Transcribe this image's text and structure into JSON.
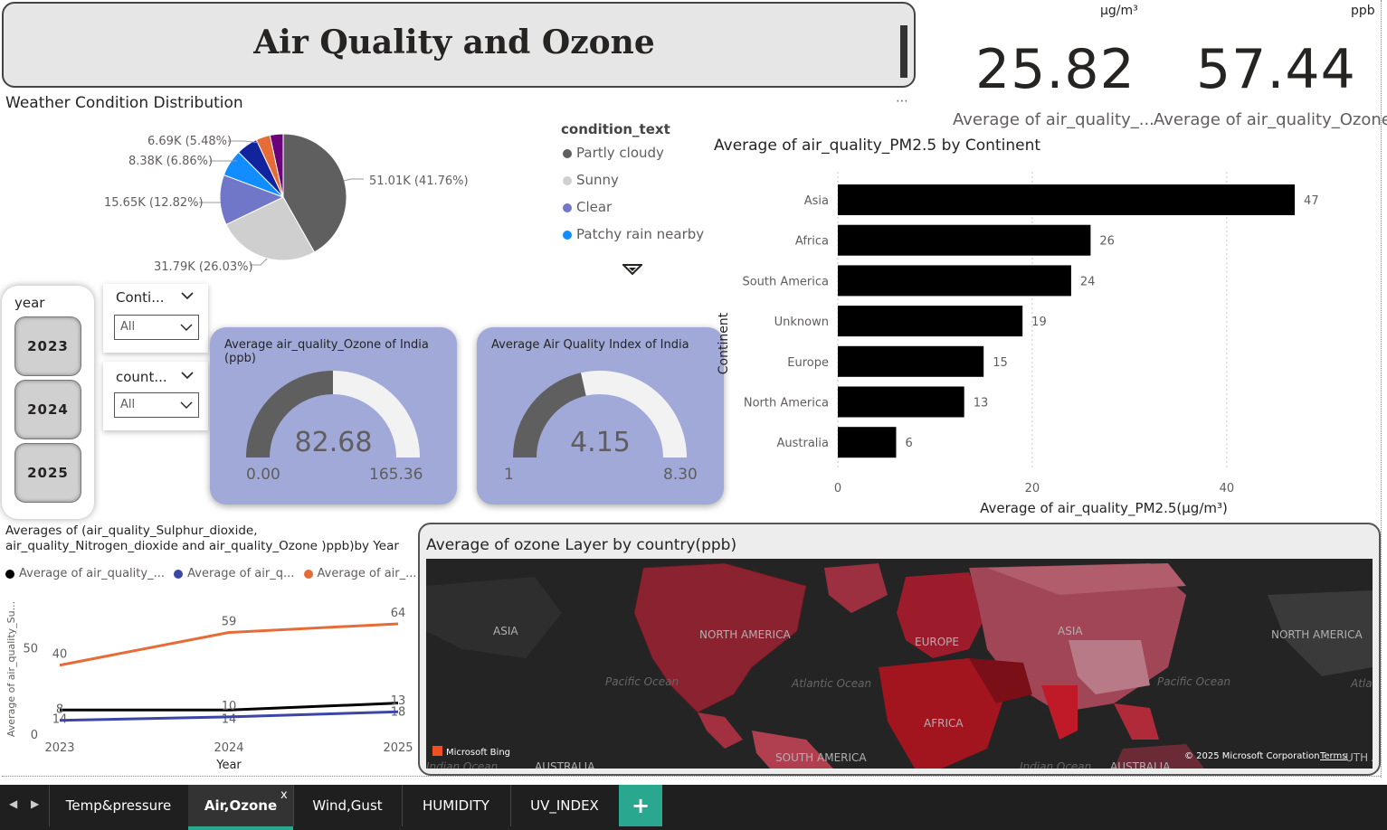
{
  "title": "Air Quality and Ozone",
  "kpis": [
    {
      "unit": "µg/m³",
      "value": "25.82",
      "label": "Average of air_quality_..."
    },
    {
      "unit": "ppb",
      "value": "57.44",
      "label": "Average of air_quality_Ozone"
    }
  ],
  "pie": {
    "title": "Weather Condition Distribution",
    "legend_title": "condition_text",
    "legend": [
      {
        "label": "Partly cloudy",
        "color": "#5f5f5f"
      },
      {
        "label": "Sunny",
        "color": "#cfcfcf"
      },
      {
        "label": "Clear",
        "color": "#7076c8"
      },
      {
        "label": "Patchy rain nearby",
        "color": "#118dff"
      }
    ],
    "labels": [
      "51.01K (41.76%)",
      "31.79K (26.03%)",
      "15.65K (12.82%)",
      "8.38K (6.86%)",
      "6.69K (5.48%)"
    ],
    "more_icon": "more-options-icon",
    "scroll_icon": "scroll-down-icon"
  },
  "slicers": {
    "year_title": "year",
    "years": [
      "2023",
      "2024",
      "2025"
    ],
    "continent_title": "Conti...",
    "continent_value": "All",
    "country_title": "count...",
    "country_value": "All"
  },
  "gauges": [
    {
      "title": "Average air_quality_Ozone of India (ppb)",
      "value": "82.68",
      "min": "0.00",
      "max": "165.36",
      "fraction": 0.5
    },
    {
      "title": "Average Air Quality Index of India",
      "value": "4.15",
      "min": "1",
      "max": "8.30",
      "fraction": 0.43
    }
  ],
  "chart_data": [
    {
      "type": "pie",
      "title": "Weather Condition Distribution",
      "legend_title": "condition_text",
      "slices": [
        {
          "label": "Partly cloudy",
          "value": 51.01,
          "percent": 41.76
        },
        {
          "label": "Sunny",
          "value": 31.79,
          "percent": 26.03
        },
        {
          "label": "Clear",
          "value": 15.65,
          "percent": 12.82
        },
        {
          "label": "Patchy rain nearby",
          "value": 8.38,
          "percent": 6.86
        },
        {
          "label": "",
          "value": 6.69,
          "percent": 5.48
        },
        {
          "label": "",
          "value": 4.4,
          "percent": 3.6
        },
        {
          "label": "",
          "value": 4.1,
          "percent": 3.4
        }
      ],
      "colors": [
        "#5f5f5f",
        "#cfcfcf",
        "#7076c8",
        "#118dff",
        "#12239e",
        "#e66c37",
        "#6b007b"
      ]
    },
    {
      "type": "bar",
      "title": "Average of air_quality_PM2.5 by Continent",
      "categories": [
        "Asia",
        "Africa",
        "South America",
        "Unknown",
        "Europe",
        "North America",
        "Australia"
      ],
      "values": [
        47,
        26,
        24,
        19,
        15,
        13,
        6
      ],
      "xlabel": "Average of air_quality_PM2.5(µg/m³)",
      "ylabel": "Continent",
      "xlim": [
        0,
        50
      ],
      "xticks": [
        0,
        20,
        40
      ],
      "orientation": "horizontal",
      "color": "#000000"
    },
    {
      "type": "line",
      "title": "Averages of (air_quality_Sulphur_dioxide, air_quality_Nitrogen_dioxide and air_quality_Ozone )ppb)by Year",
      "x": [
        "2023",
        "2024",
        "2025"
      ],
      "xlabel": "Year",
      "ylabel": "Average of air_quality_Su...",
      "ylim": [
        0,
        70
      ],
      "yticks": [
        0,
        50
      ],
      "series": [
        {
          "name": "Average of air_quality_...",
          "color": "#000000",
          "values": [
            14,
            14,
            18
          ]
        },
        {
          "name": "Average of air_q...",
          "color": "#3b46a6",
          "values": [
            8,
            10,
            13
          ]
        },
        {
          "name": "Average of air_...",
          "color": "#e66c37",
          "values": [
            40,
            59,
            64
          ]
        }
      ]
    }
  ],
  "map": {
    "title": "Average of ozone Layer by country(ppb)",
    "labels": [
      "ASIA",
      "NORTH AMERICA",
      "Pacific Ocean",
      "Atlantic Ocean",
      "EUROPE",
      "ASIA",
      "AFRICA",
      "NORTH AMERICA",
      "Pacific Ocean",
      "Atlan",
      "SOUTH AMERICA",
      "AUSTRALIA",
      "Indian Ocean",
      "Indian Ocean",
      "AUSTRALIA",
      "UTH A"
    ],
    "bing": "Microsoft Bing",
    "copyright": "© 2025 Microsoft Corporation",
    "terms": "Terms"
  },
  "tabs": {
    "items": [
      "Temp&pressure",
      "Air,Ozone",
      "Wind,Gust",
      "HUMIDITY",
      "UV_INDEX"
    ],
    "active": "Air,Ozone",
    "close_glyph": "x",
    "add_glyph": "+"
  }
}
